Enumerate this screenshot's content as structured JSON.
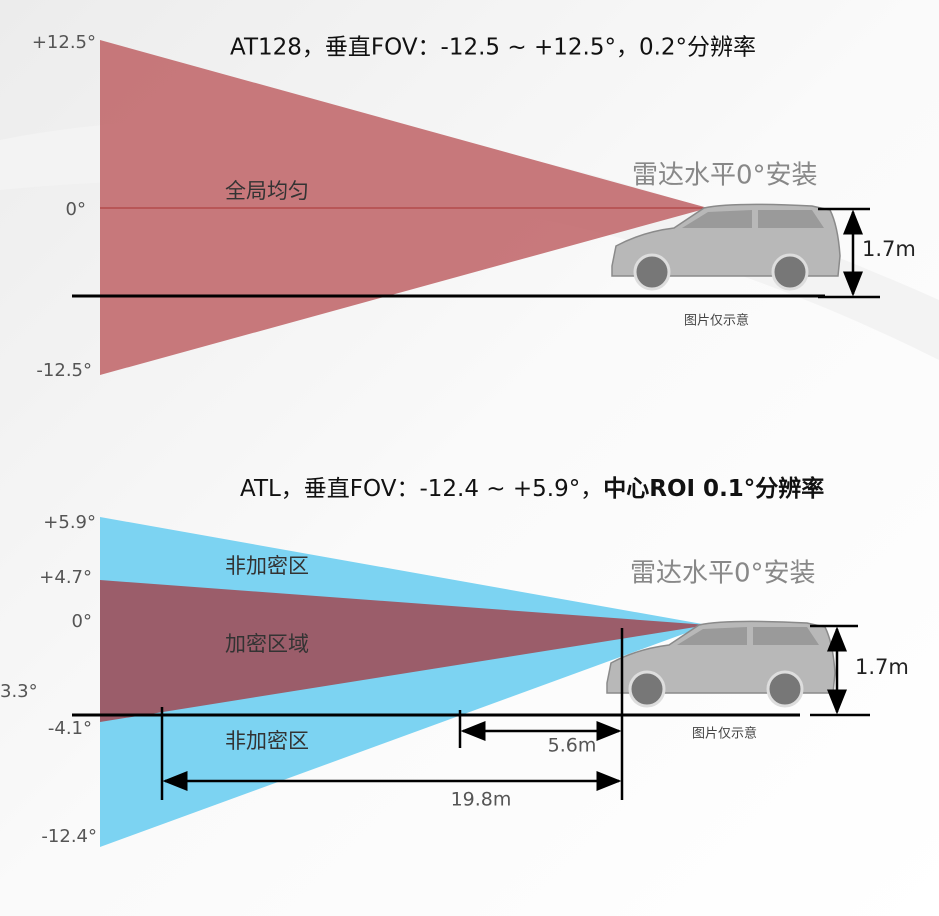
{
  "top": {
    "title": "AT128，垂直FOV：-12.5 ~ +12.5°，0.2°分辨率",
    "angles": [
      "+12.5°",
      "0°",
      "-12.5°"
    ],
    "zone": "全局均匀",
    "mount": "雷达水平0°安装",
    "height": "1.7m",
    "note": "图片仅示意"
  },
  "bottom": {
    "title": "ATL，垂直FOV：-12.4 ~ +5.9°，",
    "title_bold": "中心ROI  0.1°分辨率",
    "angles": [
      "+5.9°",
      "+4.7°",
      "0°",
      "3.3°",
      "-4.1°",
      "-12.4°"
    ],
    "zones": [
      "非加密区",
      "加密区域",
      "非加密区"
    ],
    "mount": "雷达水平0°安装",
    "height": "1.7m",
    "note": "图片仅示意",
    "distances": [
      "5.6m",
      "19.8m"
    ]
  }
}
